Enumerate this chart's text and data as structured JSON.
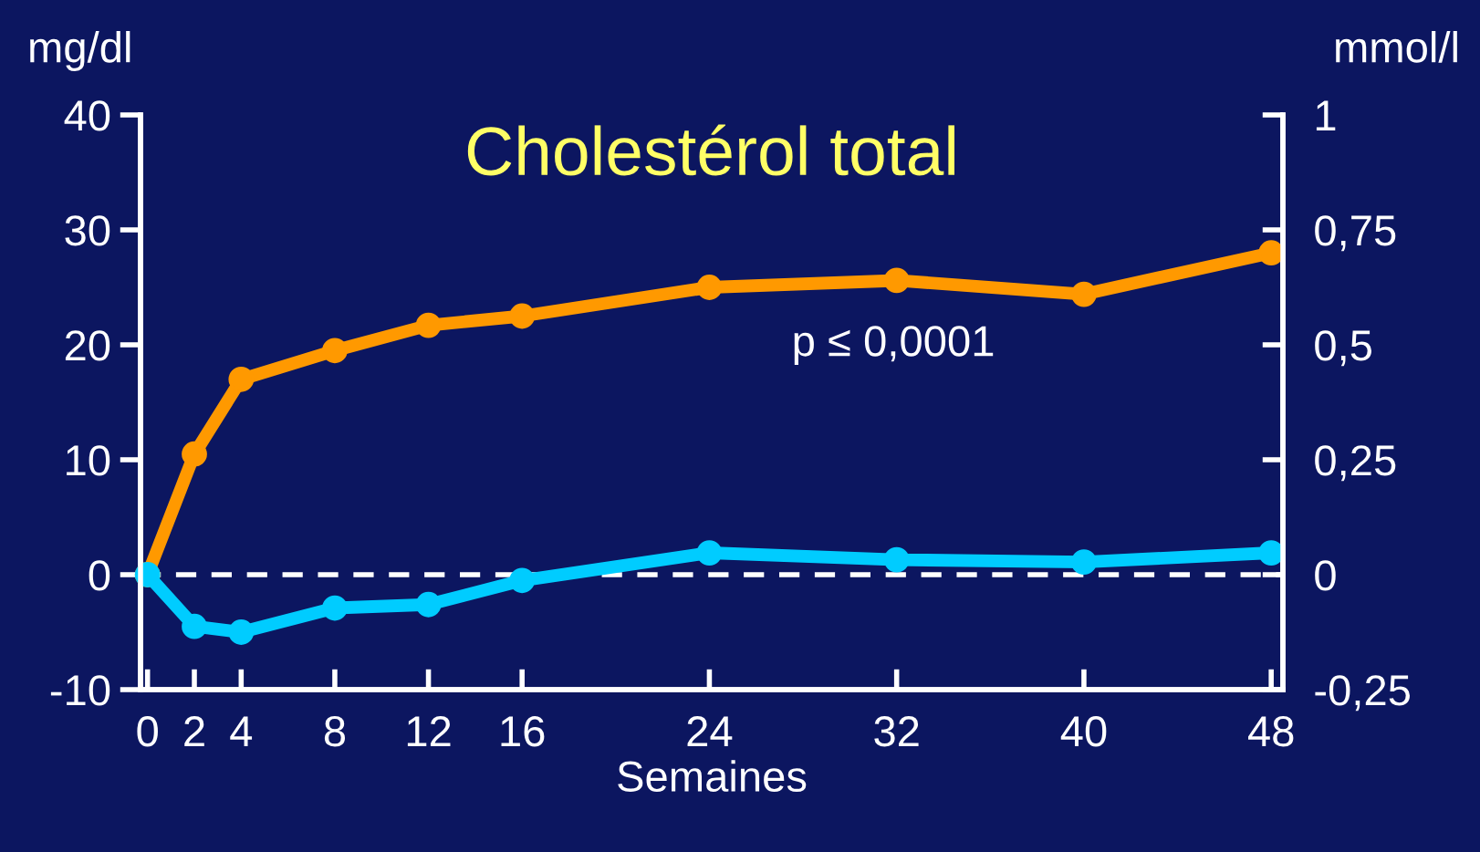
{
  "chart_data": {
    "type": "line",
    "title": "Cholestérol total",
    "xlabel": "Semaines",
    "ylabel": "mg/dl",
    "y2label": "mmol/l",
    "x": [
      0,
      2,
      4,
      8,
      12,
      16,
      24,
      32,
      40,
      48
    ],
    "series": [
      {
        "color": "#ff9900",
        "values": [
          0,
          10.5,
          17,
          19.5,
          21.7,
          22.5,
          25,
          25.6,
          24.4,
          28
        ]
      },
      {
        "color": "#00ccff",
        "values": [
          0,
          -4.5,
          -5,
          -2.9,
          -2.6,
          -0.5,
          1.9,
          1.3,
          1.1,
          1.9
        ]
      }
    ],
    "xlim": [
      -0.3,
      48.5
    ],
    "xticks": [
      0,
      2,
      4,
      8,
      12,
      16,
      24,
      32,
      40,
      48
    ],
    "ylim": [
      -10,
      40
    ],
    "yticks": [
      -10,
      0,
      10,
      20,
      30,
      40
    ],
    "y2lim": [
      -0.25,
      1
    ],
    "y2ticks": [
      {
        "value": -0.25,
        "label": "-0,25"
      },
      0,
      {
        "value": 0.25,
        "label": "0,25"
      },
      {
        "value": 0.5,
        "label": "0,5"
      },
      {
        "value": 0.75,
        "label": "0,75"
      },
      1
    ],
    "ref_lines": [
      {
        "axis": "y",
        "value": 0,
        "color": "#ffffff",
        "line_style": "dashed"
      }
    ],
    "annotations": [
      "p ≤ 0,0001"
    ],
    "marker": "circle",
    "line_style": "solid",
    "grid": false,
    "legend": false
  }
}
